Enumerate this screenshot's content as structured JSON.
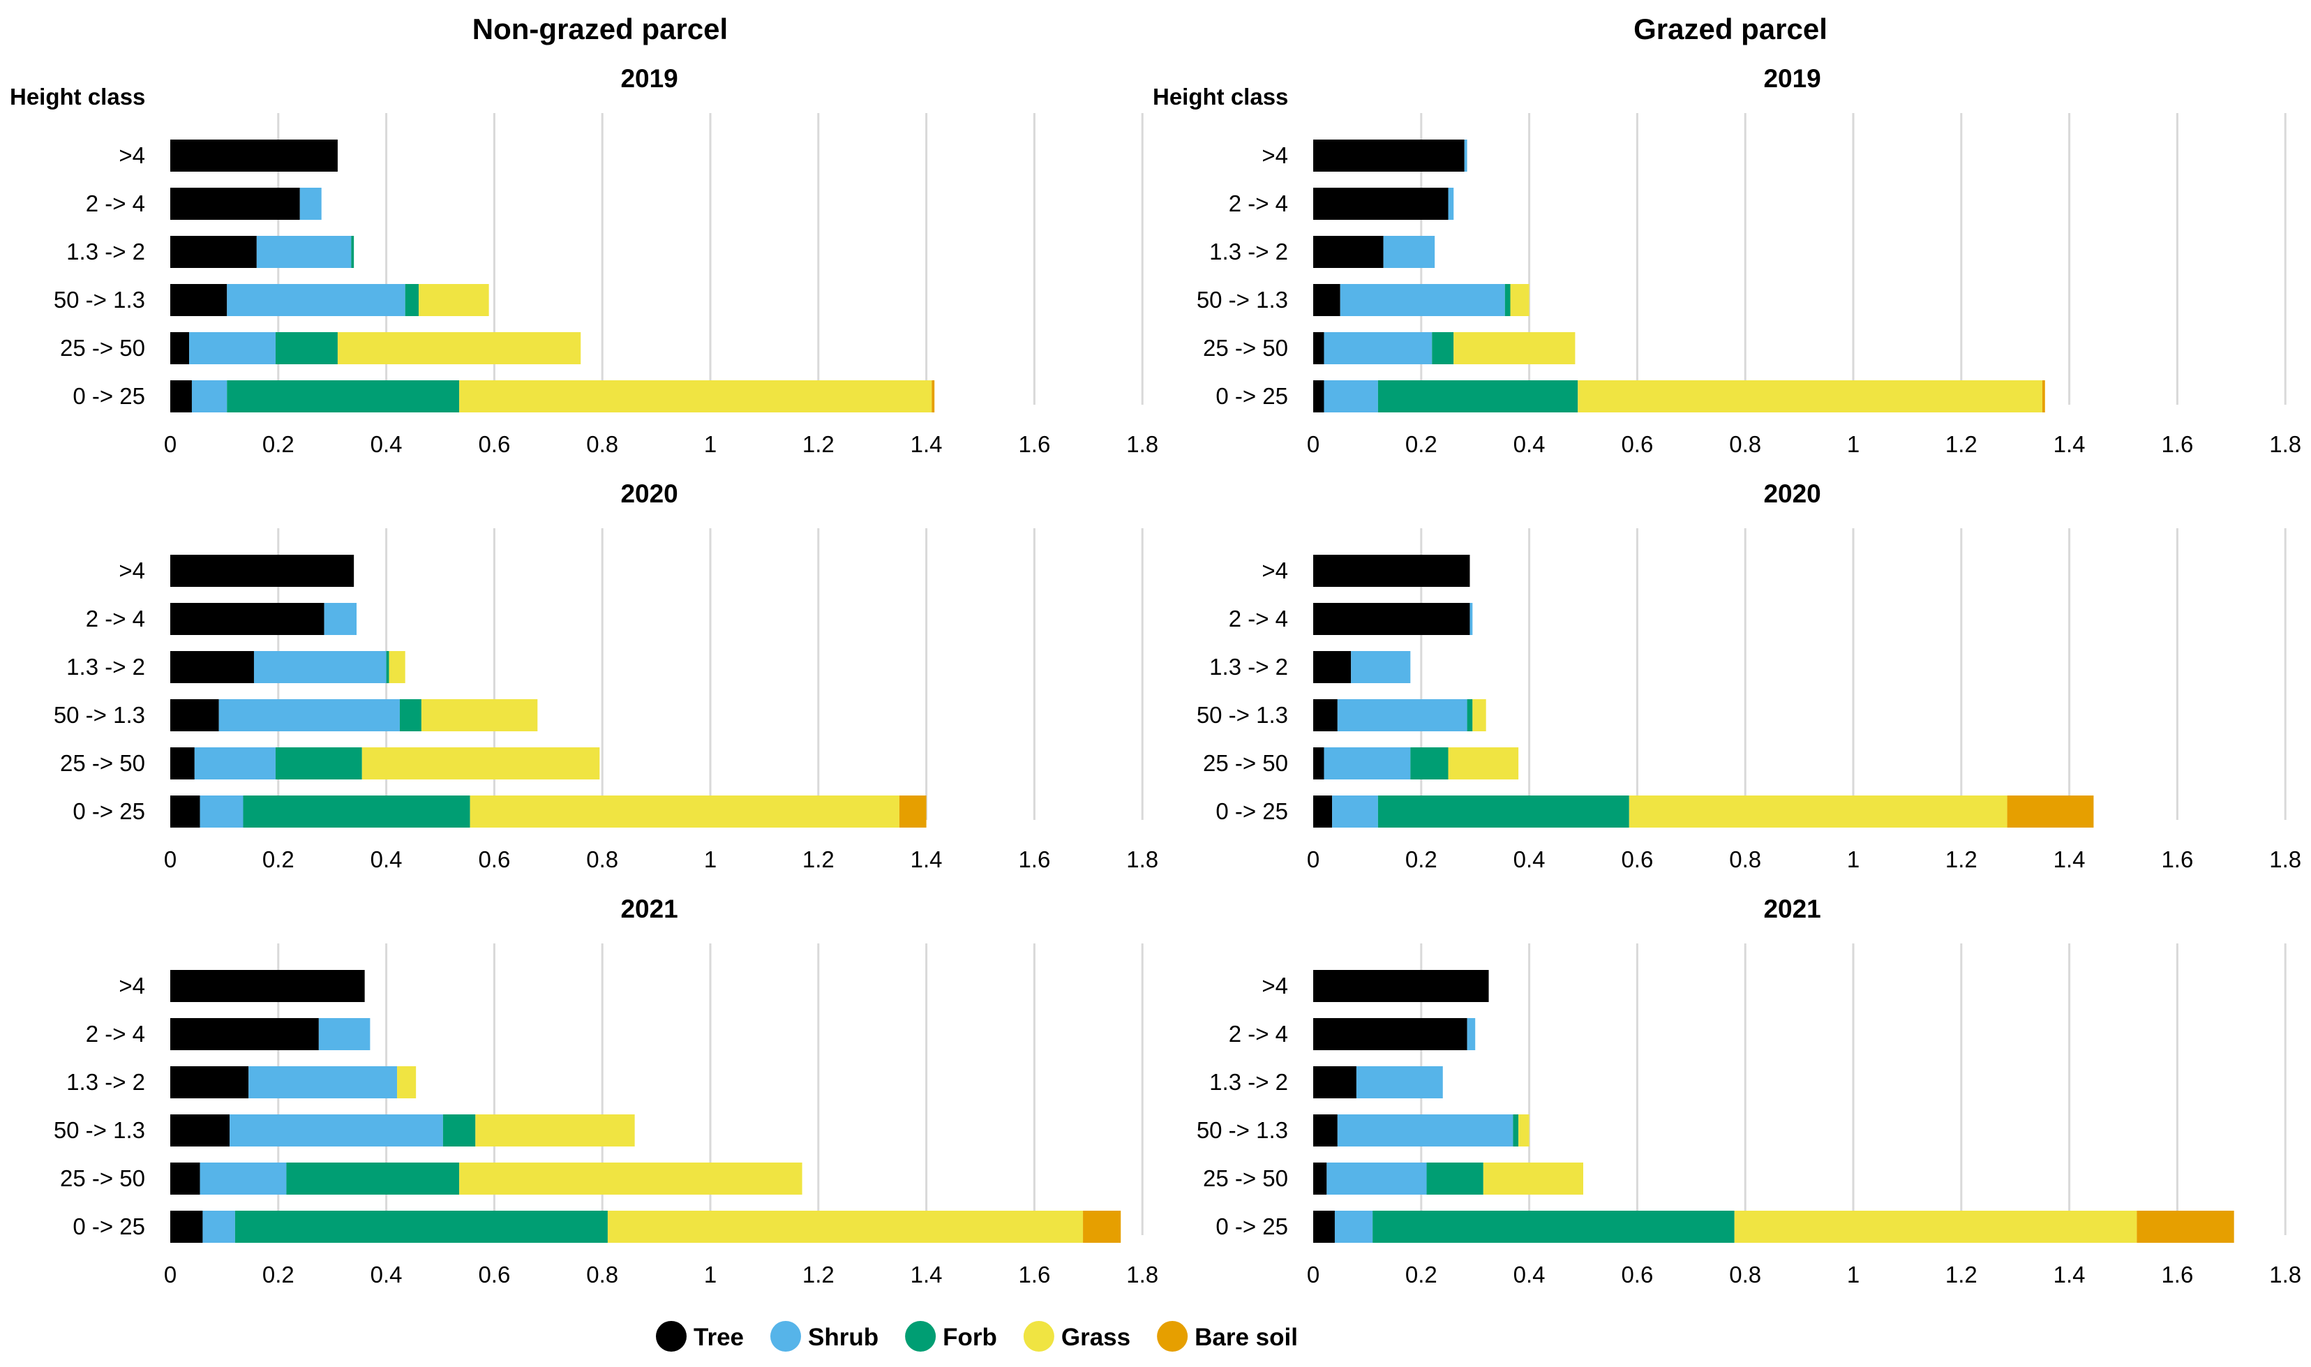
{
  "column_titles": [
    "Non-grazed parcel",
    "Grazed parcel"
  ],
  "height_class_label": "Height class",
  "colors": {
    "Tree": "#000000",
    "Shrub": "#56b4e9",
    "Forb": "#009e73",
    "Grass": "#f0e442",
    "Bare soil": "#e69f00",
    "grid": "#d9d9d9",
    "text": "#000000"
  },
  "legend": [
    "Tree",
    "Shrub",
    "Forb",
    "Grass",
    "Bare soil"
  ],
  "chart_data": [
    {
      "type": "bar",
      "orientation": "horizontal",
      "stacked": true,
      "panel": "Non-grazed parcel",
      "title": "2019",
      "ylabel": "Height class",
      "categories": [
        ">4",
        "2 -> 4",
        "1.3 -> 2",
        "50 -> 1.3",
        "25 -> 50",
        "0 -> 25"
      ],
      "xlim": [
        0,
        1.8
      ],
      "xticks": [
        "0",
        "0.2",
        "0.4",
        "0.6",
        "0.8",
        "1",
        "1.2",
        "1.4",
        "1.6",
        "1.8"
      ],
      "series": [
        {
          "name": "Tree",
          "values": [
            0.31,
            0.24,
            0.16,
            0.105,
            0.035,
            0.04
          ]
        },
        {
          "name": "Shrub",
          "values": [
            0.0,
            0.04,
            0.175,
            0.33,
            0.16,
            0.065
          ]
        },
        {
          "name": "Forb",
          "values": [
            0.0,
            0.0,
            0.005,
            0.025,
            0.115,
            0.43
          ]
        },
        {
          "name": "Grass",
          "values": [
            0.0,
            0.0,
            0.0,
            0.13,
            0.45,
            0.875
          ]
        },
        {
          "name": "Bare soil",
          "values": [
            0.0,
            0.0,
            0.0,
            0.0,
            0.0,
            0.005
          ]
        }
      ]
    },
    {
      "type": "bar",
      "orientation": "horizontal",
      "stacked": true,
      "panel": "Grazed parcel",
      "title": "2019",
      "ylabel": "Height class",
      "categories": [
        ">4",
        "2 -> 4",
        "1.3 -> 2",
        "50 -> 1.3",
        "25 -> 50",
        "0 -> 25"
      ],
      "xlim": [
        0,
        1.8
      ],
      "xticks": [
        "0",
        "0.2",
        "0.4",
        "0.6",
        "0.8",
        "1",
        "1.2",
        "1.4",
        "1.6",
        "1.8"
      ],
      "series": [
        {
          "name": "Tree",
          "values": [
            0.28,
            0.25,
            0.13,
            0.05,
            0.02,
            0.02
          ]
        },
        {
          "name": "Shrub",
          "values": [
            0.005,
            0.01,
            0.095,
            0.305,
            0.2,
            0.1
          ]
        },
        {
          "name": "Forb",
          "values": [
            0.0,
            0.0,
            0.0,
            0.01,
            0.04,
            0.37
          ]
        },
        {
          "name": "Grass",
          "values": [
            0.0,
            0.0,
            0.0,
            0.035,
            0.225,
            0.86
          ]
        },
        {
          "name": "Bare soil",
          "values": [
            0.0,
            0.0,
            0.0,
            0.0,
            0.0,
            0.005
          ]
        }
      ]
    },
    {
      "type": "bar",
      "orientation": "horizontal",
      "stacked": true,
      "panel": "Non-grazed parcel",
      "title": "2020",
      "ylabel": "",
      "categories": [
        ">4",
        "2 -> 4",
        "1.3 -> 2",
        "50 -> 1.3",
        "25 -> 50",
        "0 -> 25"
      ],
      "xlim": [
        0,
        1.8
      ],
      "xticks": [
        "0",
        "0.2",
        "0.4",
        "0.6",
        "0.8",
        "1",
        "1.2",
        "1.4",
        "1.6",
        "1.8"
      ],
      "series": [
        {
          "name": "Tree",
          "values": [
            0.34,
            0.285,
            0.155,
            0.09,
            0.045,
            0.055
          ]
        },
        {
          "name": "Shrub",
          "values": [
            0.0,
            0.06,
            0.245,
            0.335,
            0.15,
            0.08
          ]
        },
        {
          "name": "Forb",
          "values": [
            0.0,
            0.0,
            0.005,
            0.04,
            0.16,
            0.42
          ]
        },
        {
          "name": "Grass",
          "values": [
            0.0,
            0.0,
            0.03,
            0.215,
            0.44,
            0.795
          ]
        },
        {
          "name": "Bare soil",
          "values": [
            0.0,
            0.0,
            0.0,
            0.0,
            0.0,
            0.05
          ]
        }
      ]
    },
    {
      "type": "bar",
      "orientation": "horizontal",
      "stacked": true,
      "panel": "Grazed parcel",
      "title": "2020",
      "ylabel": "",
      "categories": [
        ">4",
        "2 -> 4",
        "1.3 -> 2",
        "50 -> 1.3",
        "25 -> 50",
        "0 -> 25"
      ],
      "xlim": [
        0,
        1.8
      ],
      "xticks": [
        "0",
        "0.2",
        "0.4",
        "0.6",
        "0.8",
        "1",
        "1.2",
        "1.4",
        "1.6",
        "1.8"
      ],
      "series": [
        {
          "name": "Tree",
          "values": [
            0.29,
            0.29,
            0.07,
            0.045,
            0.02,
            0.035
          ]
        },
        {
          "name": "Shrub",
          "values": [
            0.0,
            0.005,
            0.11,
            0.24,
            0.16,
            0.085
          ]
        },
        {
          "name": "Forb",
          "values": [
            0.0,
            0.0,
            0.0,
            0.01,
            0.07,
            0.465
          ]
        },
        {
          "name": "Grass",
          "values": [
            0.0,
            0.0,
            0.0,
            0.025,
            0.13,
            0.7
          ]
        },
        {
          "name": "Bare soil",
          "values": [
            0.0,
            0.0,
            0.0,
            0.0,
            0.0,
            0.16
          ]
        }
      ]
    },
    {
      "type": "bar",
      "orientation": "horizontal",
      "stacked": true,
      "panel": "Non-grazed parcel",
      "title": "2021",
      "ylabel": "",
      "categories": [
        ">4",
        "2 -> 4",
        "1.3 -> 2",
        "50 -> 1.3",
        "25 -> 50",
        "0 -> 25"
      ],
      "xlim": [
        0,
        1.8
      ],
      "xticks": [
        "0",
        "0.2",
        "0.4",
        "0.6",
        "0.8",
        "1",
        "1.2",
        "1.4",
        "1.6",
        "1.8"
      ],
      "series": [
        {
          "name": "Tree",
          "values": [
            0.36,
            0.275,
            0.145,
            0.11,
            0.055,
            0.06
          ]
        },
        {
          "name": "Shrub",
          "values": [
            0.0,
            0.095,
            0.275,
            0.395,
            0.16,
            0.06
          ]
        },
        {
          "name": "Forb",
          "values": [
            0.0,
            0.0,
            0.0,
            0.06,
            0.32,
            0.69
          ]
        },
        {
          "name": "Grass",
          "values": [
            0.0,
            0.0,
            0.035,
            0.295,
            0.635,
            0.88
          ]
        },
        {
          "name": "Bare soil",
          "values": [
            0.0,
            0.0,
            0.0,
            0.0,
            0.0,
            0.07
          ]
        }
      ]
    },
    {
      "type": "bar",
      "orientation": "horizontal",
      "stacked": true,
      "panel": "Grazed parcel",
      "title": "2021",
      "ylabel": "",
      "categories": [
        ">4",
        "2 -> 4",
        "1.3 -> 2",
        "50 -> 1.3",
        "25 -> 50",
        "0 -> 25"
      ],
      "xlim": [
        0,
        1.8
      ],
      "xticks": [
        "0",
        "0.2",
        "0.4",
        "0.6",
        "0.8",
        "1",
        "1.2",
        "1.4",
        "1.6",
        "1.8"
      ],
      "series": [
        {
          "name": "Tree",
          "values": [
            0.325,
            0.285,
            0.08,
            0.045,
            0.025,
            0.04
          ]
        },
        {
          "name": "Shrub",
          "values": [
            0.0,
            0.015,
            0.16,
            0.325,
            0.185,
            0.07
          ]
        },
        {
          "name": "Forb",
          "values": [
            0.0,
            0.0,
            0.0,
            0.01,
            0.105,
            0.67
          ]
        },
        {
          "name": "Grass",
          "values": [
            0.0,
            0.0,
            0.0,
            0.02,
            0.185,
            0.745
          ]
        },
        {
          "name": "Bare soil",
          "values": [
            0.0,
            0.0,
            0.0,
            0.0,
            0.0,
            0.18
          ]
        }
      ]
    }
  ]
}
